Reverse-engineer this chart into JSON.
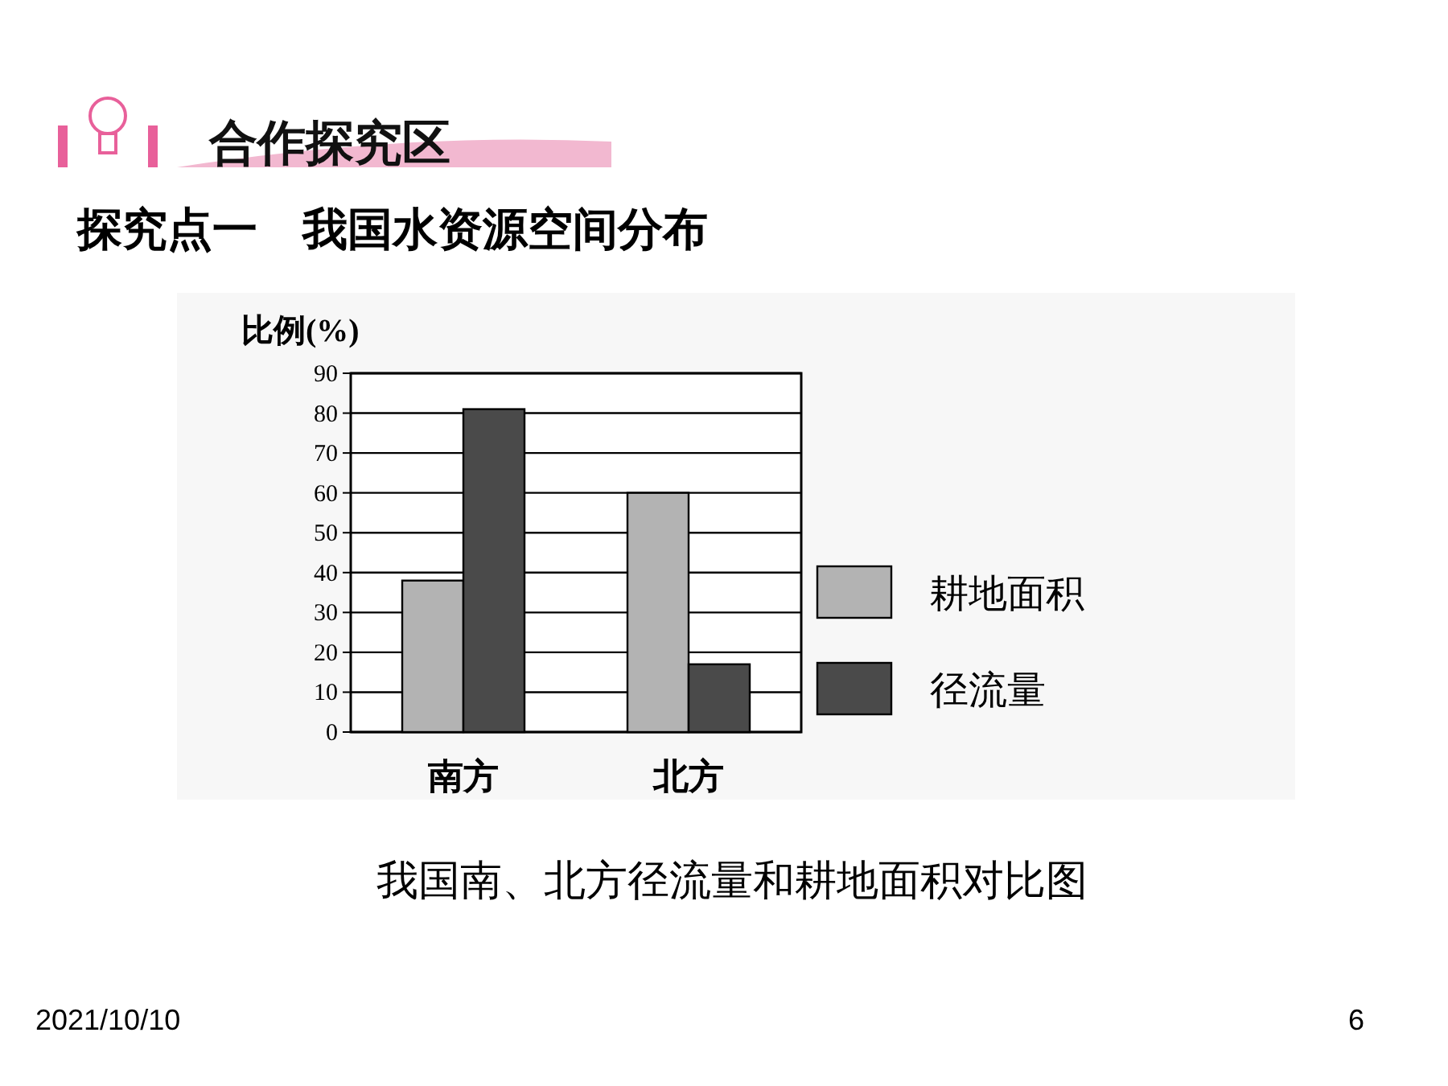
{
  "chart_data": {
    "type": "bar",
    "title": "合作探究区",
    "subtitle": "探究点一　我国水资源空间分布",
    "ylabel": "比例(%)",
    "categories": [
      "南方",
      "北方"
    ],
    "series": [
      {
        "name": "耕地面积",
        "color": "#b3b3b3",
        "values": [
          38,
          60
        ]
      },
      {
        "name": "径流量",
        "color": "#4a4a4a",
        "values": [
          81,
          17
        ]
      }
    ],
    "ylim": [
      0,
      90
    ],
    "yticks": [
      0,
      10,
      20,
      30,
      40,
      50,
      60,
      70,
      80,
      90
    ],
    "grid": "y",
    "legend": "right",
    "annotations": [
      "我国南、北方径流量和耕地面积对比图",
      "2021/10/10",
      "6"
    ]
  }
}
